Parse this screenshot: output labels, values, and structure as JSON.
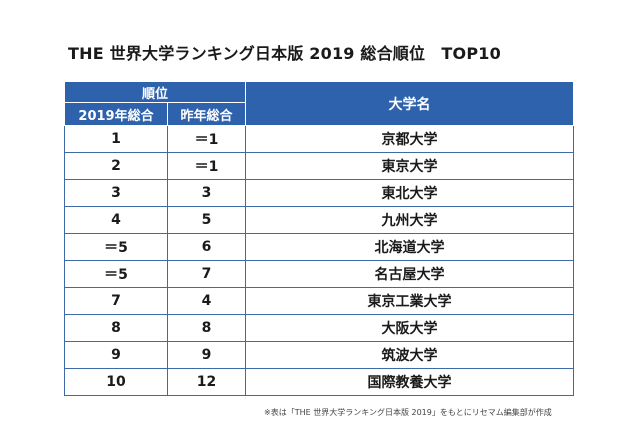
{
  "title": "THE 世界大学ランキング日本版 2019  総合順位　TOP10",
  "header": {
    "rank_group": "順位",
    "col_2019": "2019年総合",
    "col_prev": "昨年総合",
    "col_university": "大学名"
  },
  "rows": [
    {
      "rank_2019": "1",
      "rank_prev": "＝1",
      "university": "京都大学"
    },
    {
      "rank_2019": "2",
      "rank_prev": "＝1",
      "university": "東京大学"
    },
    {
      "rank_2019": "3",
      "rank_prev": "3",
      "university": "東北大学"
    },
    {
      "rank_2019": "4",
      "rank_prev": "5",
      "university": "九州大学"
    },
    {
      "rank_2019": "＝5",
      "rank_prev": "6",
      "university": "北海道大学"
    },
    {
      "rank_2019": "＝5",
      "rank_prev": "7",
      "university": "名古屋大学"
    },
    {
      "rank_2019": "7",
      "rank_prev": "4",
      "university": "東京工業大学"
    },
    {
      "rank_2019": "8",
      "rank_prev": "8",
      "university": "大阪大学"
    },
    {
      "rank_2019": "9",
      "rank_prev": "9",
      "university": "筑波大学"
    },
    {
      "rank_2019": "10",
      "rank_prev": "12",
      "university": "国際教養大学"
    }
  ],
  "note": "※表は「THE 世界大学ランキング日本版 2019」をもとにリセマム編集部が作成",
  "colors": {
    "header_bg": "#2f62ad",
    "border": "#3e6aa8"
  }
}
